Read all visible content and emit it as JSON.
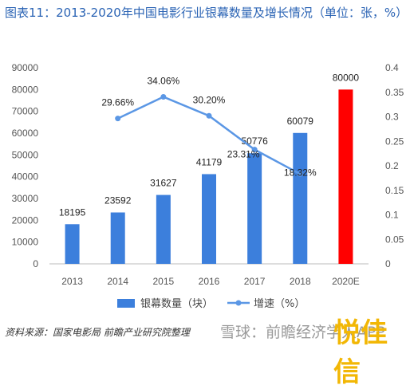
{
  "title": "图表11：2013-2020年中国电影行业银幕数量及增长情况（单位：张，%）",
  "source": "资料来源：国家电影局 前瞻产业研究院整理",
  "watermark": "雪球：前瞻经济学人APP",
  "corner_logo": "悦佳信",
  "colors": {
    "bar": "#3c7fdc",
    "forecast_bar": "#ff0000",
    "line": "#5b97e5",
    "title": "#2a63b4"
  },
  "chart_data": {
    "type": "bar",
    "categories": [
      "2013",
      "2014",
      "2015",
      "2016",
      "2017",
      "2018",
      "2020E"
    ],
    "series": [
      {
        "name": "银幕数量（块）",
        "type": "bar",
        "axis": "left",
        "values": [
          18195,
          23592,
          31627,
          41179,
          50776,
          60079,
          80000
        ],
        "labels": [
          "18195",
          "23592",
          "31627",
          "41179",
          "50776",
          "60079",
          "80000"
        ]
      },
      {
        "name": "增速（%）",
        "type": "line",
        "axis": "right",
        "values": [
          null,
          0.2966,
          0.3406,
          0.302,
          0.2331,
          0.1832,
          null
        ],
        "labels": [
          "",
          "29.66%",
          "34.06%",
          "30.20%",
          "23.31%",
          "18.32%",
          ""
        ]
      }
    ],
    "ylim_left": [
      0,
      90000
    ],
    "yticks_left": [
      "0",
      "10000",
      "20000",
      "30000",
      "40000",
      "50000",
      "60000",
      "70000",
      "80000",
      "90000"
    ],
    "ylim_right": [
      0,
      0.4
    ],
    "yticks_right": [
      "0",
      "0.05",
      "0.1",
      "0.15",
      "0.2",
      "0.25",
      "0.3",
      "0.35",
      "0.4"
    ],
    "grid": false,
    "legend_position": "bottom"
  }
}
